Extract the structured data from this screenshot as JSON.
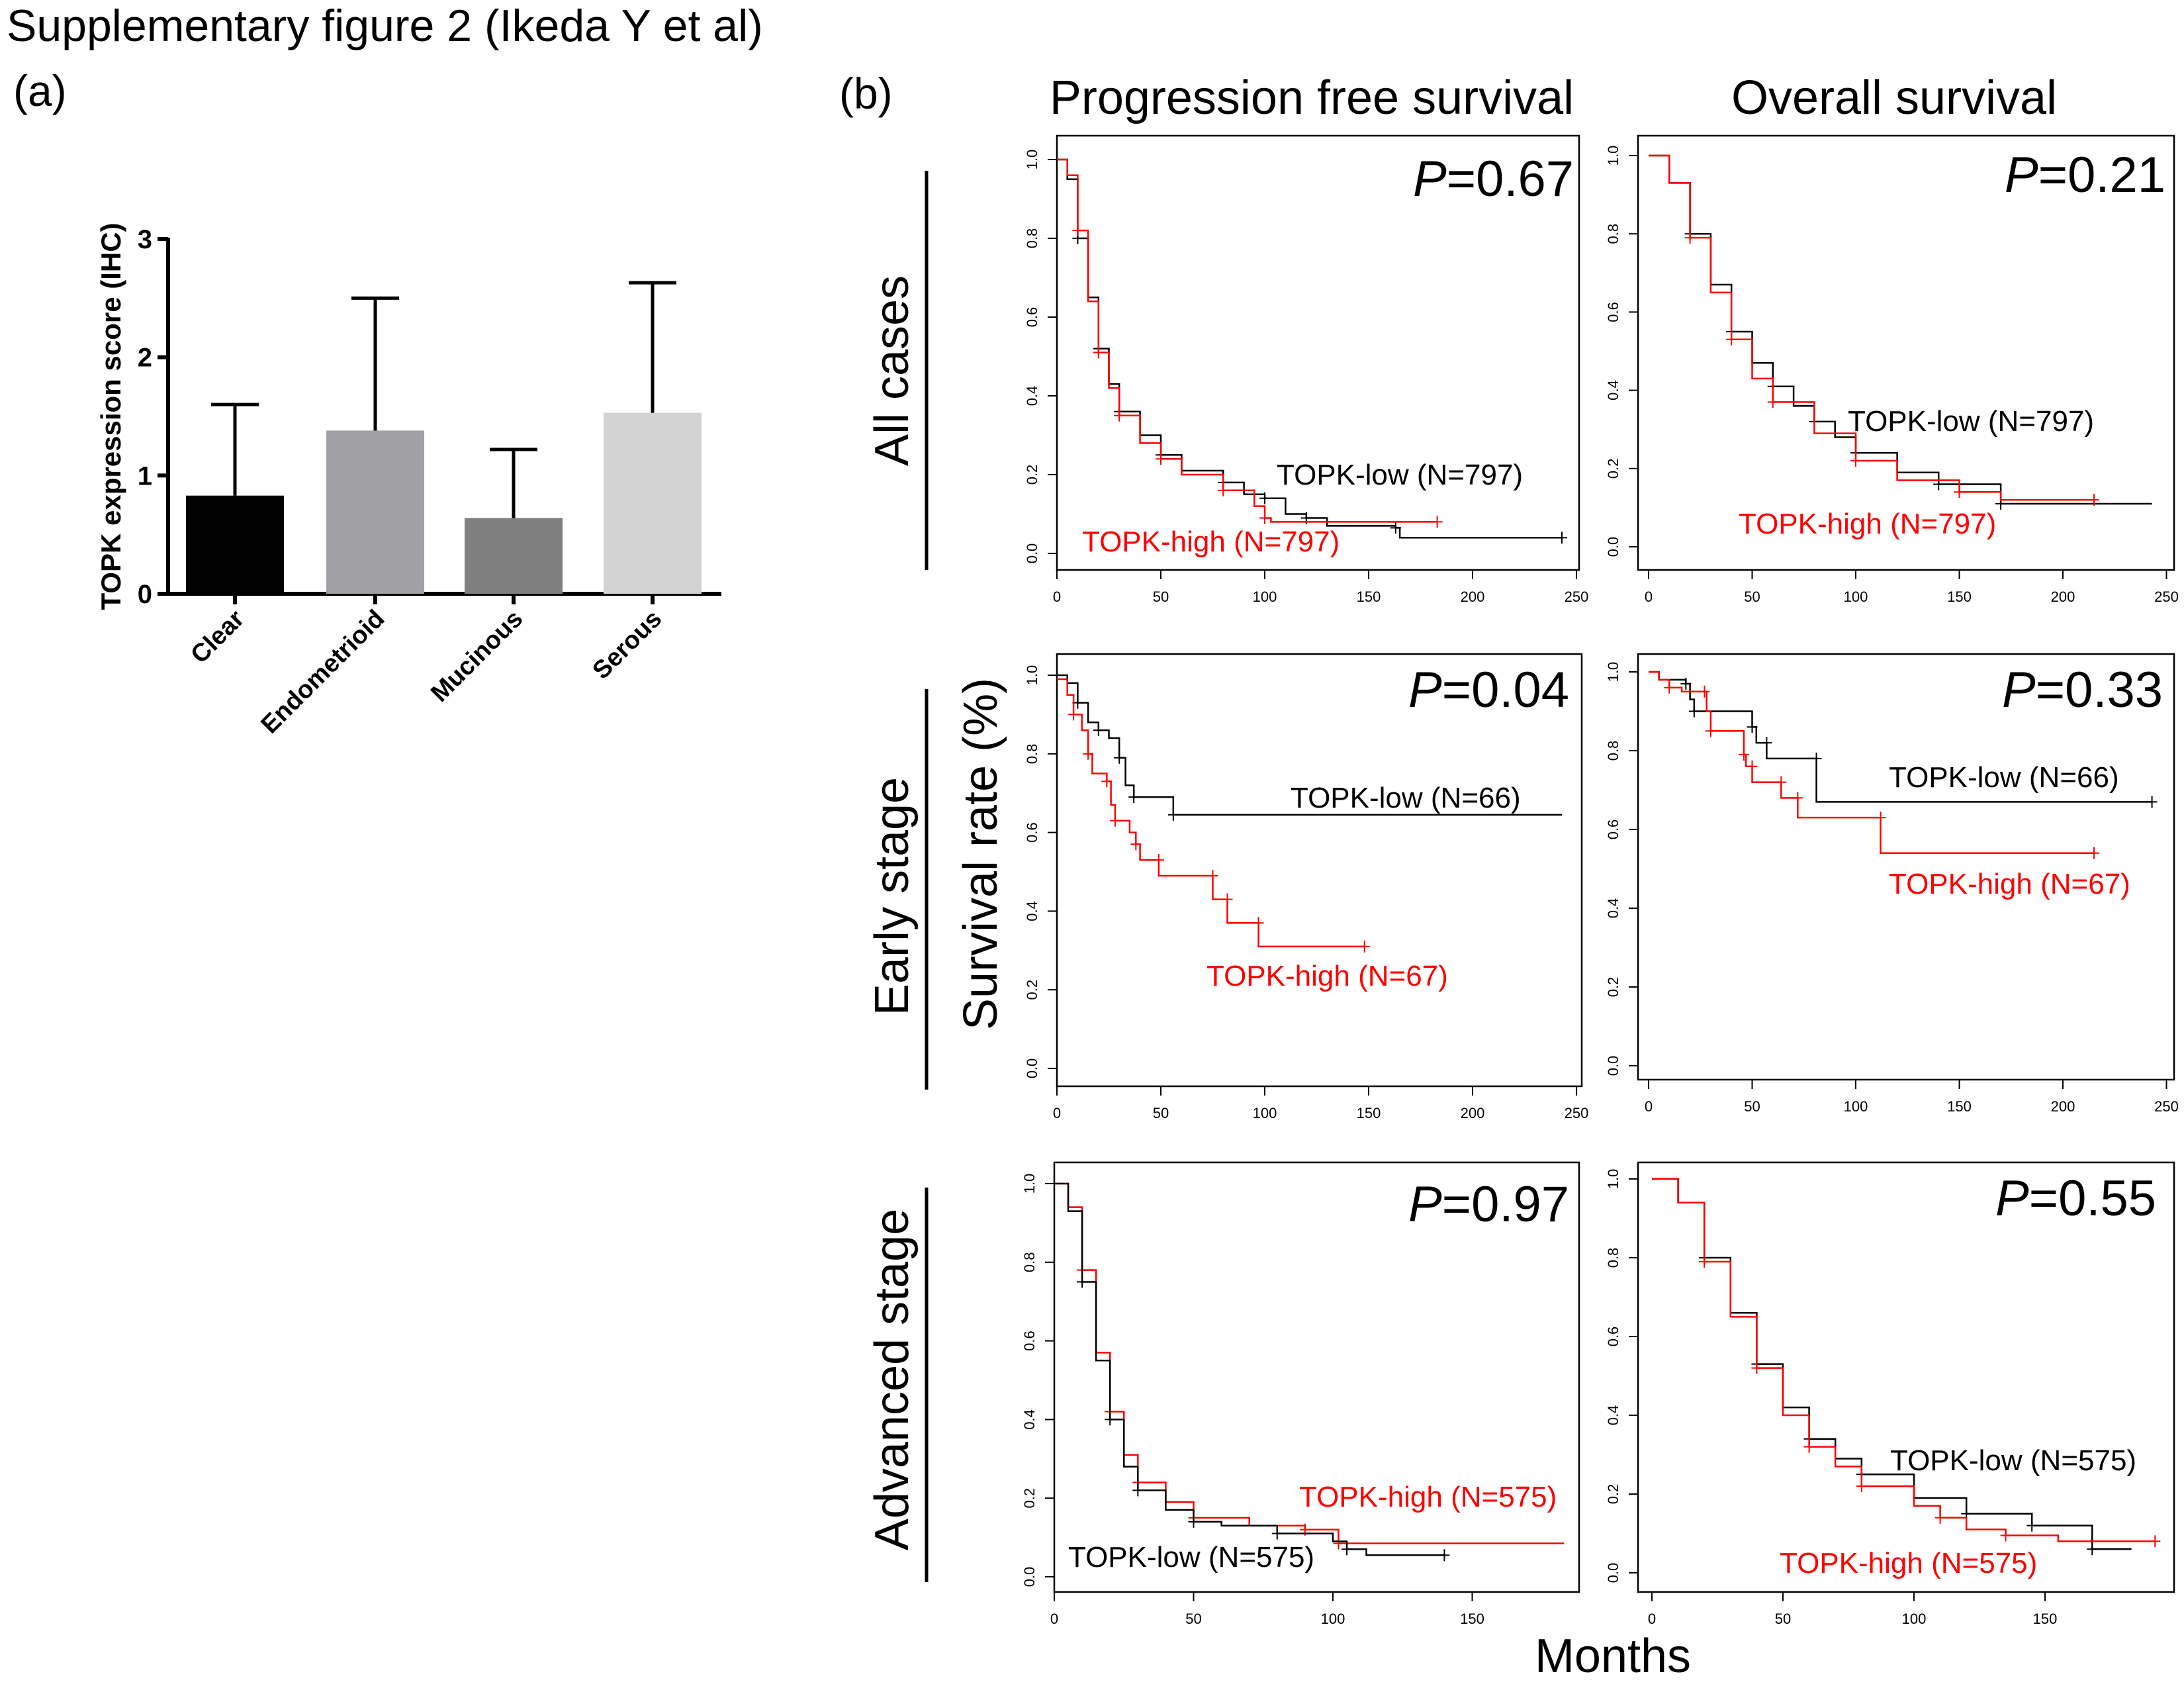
{
  "figure_title": "Supplementary figure 2 (Ikeda Y et al)",
  "panel_a_label": "(a)",
  "panel_b_label": "(b)",
  "column_titles": [
    "Progression free survival",
    "Overall survival"
  ],
  "row_labels": [
    "All cases",
    "Early stage",
    "Advanced stage"
  ],
  "shared_ylabel": "Survival rate (%)",
  "shared_xlabel": "Months",
  "colors": {
    "low": "#000000",
    "high": "#ff0000"
  },
  "chart_data": [
    {
      "type": "bar",
      "ylabel": "TOPK expression score (IHC)",
      "categories": [
        "Clear",
        "Endometrioid",
        "Mucinous",
        "Serous"
      ],
      "values": [
        0.83,
        1.38,
        0.64,
        1.53
      ],
      "error_upper": [
        1.6,
        2.5,
        1.22,
        2.63
      ],
      "bar_colors": [
        "#000000",
        "#a1a0a5",
        "#7f7f7f",
        "#d3d3d3"
      ],
      "ylim": [
        0,
        3
      ],
      "yticks": [
        "0",
        "1",
        "2",
        "3"
      ]
    },
    {
      "type": "line",
      "subtype": "kaplan-meier",
      "panel": "Progression free survival / All cases",
      "p_value": "=0.67",
      "p_symbol": "P",
      "xlim": [
        0,
        250
      ],
      "xticks": [
        "0",
        "50",
        "100",
        "150",
        "200",
        "250"
      ],
      "ylim": [
        0,
        1
      ],
      "yticks": [
        "0.0",
        "0.2",
        "0.4",
        "0.6",
        "0.8",
        "1.0"
      ],
      "series": [
        {
          "name": "TOPK-low (N=797)",
          "group": "low",
          "points": [
            [
              0,
              1
            ],
            [
              5,
              0.95
            ],
            [
              10,
              0.8
            ],
            [
              15,
              0.65
            ],
            [
              20,
              0.52
            ],
            [
              25,
              0.43
            ],
            [
              30,
              0.36
            ],
            [
              40,
              0.3
            ],
            [
              50,
              0.25
            ],
            [
              60,
              0.21
            ],
            [
              80,
              0.18
            ],
            [
              90,
              0.15
            ],
            [
              100,
              0.14
            ],
            [
              110,
              0.1
            ],
            [
              120,
              0.09
            ],
            [
              130,
              0.07
            ],
            [
              163,
              0.065
            ],
            [
              165,
              0.04
            ],
            [
              243,
              0.04
            ]
          ]
        },
        {
          "name": "TOPK-high (N=797)",
          "group": "high",
          "points": [
            [
              0,
              1
            ],
            [
              5,
              0.96
            ],
            [
              10,
              0.82
            ],
            [
              15,
              0.64
            ],
            [
              20,
              0.51
            ],
            [
              25,
              0.42
            ],
            [
              30,
              0.35
            ],
            [
              40,
              0.28
            ],
            [
              50,
              0.24
            ],
            [
              60,
              0.2
            ],
            [
              80,
              0.16
            ],
            [
              95,
              0.12
            ],
            [
              100,
              0.09
            ],
            [
              103,
              0.08
            ],
            [
              183,
              0.08
            ]
          ]
        }
      ]
    },
    {
      "type": "line",
      "subtype": "kaplan-meier",
      "panel": "Overall survival / All cases",
      "p_value": "=0.21",
      "p_symbol": "P",
      "xlim": [
        0,
        250
      ],
      "xticks": [
        "0",
        "50",
        "100",
        "150",
        "200",
        "250"
      ],
      "ylim": [
        0,
        1
      ],
      "yticks": [
        "0.0",
        "0.2",
        "0.4",
        "0.6",
        "0.8",
        "1.0"
      ],
      "series": [
        {
          "name": "TOPK-low (N=797)",
          "group": "low",
          "points": [
            [
              0,
              1
            ],
            [
              10,
              0.93
            ],
            [
              20,
              0.8
            ],
            [
              30,
              0.67
            ],
            [
              40,
              0.55
            ],
            [
              50,
              0.47
            ],
            [
              60,
              0.41
            ],
            [
              70,
              0.36
            ],
            [
              80,
              0.32
            ],
            [
              90,
              0.28
            ],
            [
              100,
              0.24
            ],
            [
              120,
              0.19
            ],
            [
              140,
              0.16
            ],
            [
              170,
              0.13
            ],
            [
              170,
              0.11
            ],
            [
              243,
              0.11
            ]
          ]
        },
        {
          "name": "TOPK-high (N=797)",
          "group": "high",
          "points": [
            [
              0,
              1
            ],
            [
              10,
              0.93
            ],
            [
              20,
              0.79
            ],
            [
              30,
              0.65
            ],
            [
              40,
              0.53
            ],
            [
              50,
              0.43
            ],
            [
              60,
              0.37
            ],
            [
              80,
              0.29
            ],
            [
              100,
              0.22
            ],
            [
              120,
              0.17
            ],
            [
              150,
              0.14
            ],
            [
              170,
              0.12
            ],
            [
              215,
              0.12
            ]
          ]
        }
      ]
    },
    {
      "type": "line",
      "subtype": "kaplan-meier",
      "panel": "Progression free survival / Early stage",
      "p_value": "=0.04",
      "p_symbol": "P",
      "xlim": [
        0,
        250
      ],
      "xticks": [
        "0",
        "50",
        "100",
        "150",
        "200",
        "250"
      ],
      "ylim": [
        0,
        1
      ],
      "yticks": [
        "0.0",
        "0.2",
        "0.4",
        "0.6",
        "0.8",
        "1.0"
      ],
      "series": [
        {
          "name": "TOPK-low (N=66)",
          "group": "low",
          "points": [
            [
              0,
              1
            ],
            [
              5,
              0.98
            ],
            [
              10,
              0.93
            ],
            [
              15,
              0.88
            ],
            [
              20,
              0.86
            ],
            [
              25,
              0.84
            ],
            [
              30,
              0.79
            ],
            [
              33,
              0.72
            ],
            [
              37,
              0.69
            ],
            [
              56,
              0.69
            ],
            [
              56,
              0.645
            ],
            [
              243,
              0.645
            ]
          ]
        },
        {
          "name": "TOPK-high (N=67)",
          "group": "high",
          "points": [
            [
              0,
              0.99
            ],
            [
              5,
              0.95
            ],
            [
              8,
              0.9
            ],
            [
              12,
              0.86
            ],
            [
              15,
              0.8
            ],
            [
              17,
              0.75
            ],
            [
              24,
              0.73
            ],
            [
              26,
              0.67
            ],
            [
              28,
              0.63
            ],
            [
              35,
              0.6
            ],
            [
              38,
              0.57
            ],
            [
              40,
              0.53
            ],
            [
              49,
              0.53
            ],
            [
              49,
              0.49
            ],
            [
              75,
              0.49
            ],
            [
              75,
              0.43
            ],
            [
              82,
              0.43
            ],
            [
              82,
              0.37
            ],
            [
              97,
              0.37
            ],
            [
              97,
              0.31
            ],
            [
              148,
              0.31
            ]
          ]
        }
      ]
    },
    {
      "type": "line",
      "subtype": "kaplan-meier",
      "panel": "Overall survival / Early stage",
      "p_value": "=0.33",
      "p_symbol": "P",
      "xlim": [
        0,
        250
      ],
      "xticks": [
        "0",
        "50",
        "100",
        "150",
        "200",
        "250"
      ],
      "ylim": [
        0,
        1
      ],
      "yticks": [
        "0.0",
        "0.2",
        "0.4",
        "0.6",
        "0.8",
        "1.0"
      ],
      "series": [
        {
          "name": "TOPK-low (N=66)",
          "group": "low",
          "points": [
            [
              0,
              1
            ],
            [
              5,
              0.98
            ],
            [
              18,
              0.97
            ],
            [
              20,
              0.93
            ],
            [
              22,
              0.9
            ],
            [
              48,
              0.9
            ],
            [
              50,
              0.86
            ],
            [
              52,
              0.82
            ],
            [
              57,
              0.82
            ],
            [
              57,
              0.78
            ],
            [
              81,
              0.78
            ],
            [
              81,
              0.67
            ],
            [
              243,
              0.67
            ]
          ]
        },
        {
          "name": "TOPK-high (N=67)",
          "group": "high",
          "points": [
            [
              0,
              1
            ],
            [
              5,
              0.98
            ],
            [
              10,
              0.96
            ],
            [
              16,
              0.95
            ],
            [
              27,
              0.95
            ],
            [
              28,
              0.9
            ],
            [
              30,
              0.85
            ],
            [
              44,
              0.85
            ],
            [
              46,
              0.79
            ],
            [
              47,
              0.76
            ],
            [
              50,
              0.76
            ],
            [
              50,
              0.72
            ],
            [
              64,
              0.72
            ],
            [
              64,
              0.68
            ],
            [
              72,
              0.68
            ],
            [
              72,
              0.63
            ],
            [
              112,
              0.63
            ],
            [
              112,
              0.54
            ],
            [
              215,
              0.54
            ]
          ]
        }
      ]
    },
    {
      "type": "line",
      "subtype": "kaplan-meier",
      "panel": "Progression free survival / Advanced stage",
      "p_value": "=0.97",
      "p_symbol": "P",
      "xlim": [
        0,
        188
      ],
      "xticks": [
        "0",
        "50",
        "100",
        "150"
      ],
      "ylim": [
        0,
        1
      ],
      "yticks": [
        "0.0",
        "0.2",
        "0.4",
        "0.6",
        "0.8",
        "1.0"
      ],
      "series": [
        {
          "name": "TOPK-high (N=575)",
          "group": "high",
          "points": [
            [
              0,
              1
            ],
            [
              5,
              0.94
            ],
            [
              10,
              0.78
            ],
            [
              15,
              0.57
            ],
            [
              20,
              0.42
            ],
            [
              25,
              0.31
            ],
            [
              30,
              0.24
            ],
            [
              40,
              0.19
            ],
            [
              50,
              0.15
            ],
            [
              70,
              0.13
            ],
            [
              90,
              0.12
            ],
            [
              102,
              0.11
            ],
            [
              102,
              0.085
            ],
            [
              183,
              0.085
            ]
          ]
        },
        {
          "name": "TOPK-low (N=575)",
          "group": "low",
          "points": [
            [
              0,
              1
            ],
            [
              5,
              0.93
            ],
            [
              10,
              0.75
            ],
            [
              15,
              0.55
            ],
            [
              20,
              0.4
            ],
            [
              25,
              0.28
            ],
            [
              30,
              0.22
            ],
            [
              40,
              0.17
            ],
            [
              50,
              0.14
            ],
            [
              60,
              0.13
            ],
            [
              80,
              0.11
            ],
            [
              100,
              0.09
            ],
            [
              105,
              0.07
            ],
            [
              112,
              0.055
            ],
            [
              140,
              0.055
            ]
          ]
        }
      ]
    },
    {
      "type": "line",
      "subtype": "kaplan-meier",
      "panel": "Overall survival / Advanced stage",
      "p_value": "=0.55",
      "p_symbol": "P",
      "xlim": [
        0,
        195
      ],
      "xticks": [
        "0",
        "50",
        "100",
        "150"
      ],
      "ylim": [
        0,
        1
      ],
      "yticks": [
        "0.0",
        "0.2",
        "0.4",
        "0.6",
        "0.8",
        "1.0"
      ],
      "series": [
        {
          "name": "TOPK-low (N=575)",
          "group": "low",
          "points": [
            [
              0,
              1
            ],
            [
              10,
              0.94
            ],
            [
              20,
              0.8
            ],
            [
              30,
              0.66
            ],
            [
              40,
              0.53
            ],
            [
              50,
              0.42
            ],
            [
              60,
              0.34
            ],
            [
              70,
              0.29
            ],
            [
              80,
              0.25
            ],
            [
              100,
              0.19
            ],
            [
              120,
              0.15
            ],
            [
              145,
              0.15
            ],
            [
              145,
              0.12
            ],
            [
              168,
              0.12
            ],
            [
              168,
              0.06
            ],
            [
              183,
              0.06
            ]
          ]
        },
        {
          "name": "TOPK-high (N=575)",
          "group": "high",
          "points": [
            [
              0,
              1
            ],
            [
              10,
              0.94
            ],
            [
              20,
              0.79
            ],
            [
              30,
              0.65
            ],
            [
              40,
              0.52
            ],
            [
              50,
              0.4
            ],
            [
              60,
              0.32
            ],
            [
              70,
              0.27
            ],
            [
              80,
              0.22
            ],
            [
              100,
              0.17
            ],
            [
              110,
              0.14
            ],
            [
              120,
              0.11
            ],
            [
              135,
              0.095
            ],
            [
              155,
              0.08
            ],
            [
              192,
              0.08
            ]
          ]
        }
      ]
    }
  ]
}
